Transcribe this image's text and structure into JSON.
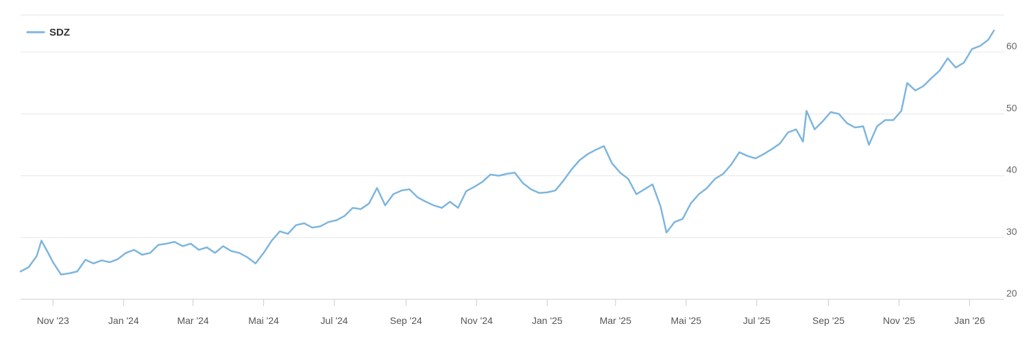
{
  "chart_data": {
    "type": "line",
    "title": "",
    "xlabel": "",
    "ylabel": "",
    "legend_position": "top-left",
    "grid": true,
    "ylim": [
      20,
      66
    ],
    "y_ticks": [
      20,
      30,
      40,
      50,
      60
    ],
    "x_tick_labels": [
      "Nov '23",
      "Jan '24",
      "Mar '24",
      "Mai '24",
      "Jul '24",
      "Sep '24",
      "Nov '24",
      "Jan '25",
      "Mar '25",
      "Mai '25",
      "Jul '25",
      "Sep '25",
      "Nov '25",
      "Jan '26"
    ],
    "x_tick_dates": [
      "2023-11-01",
      "2024-01-01",
      "2024-03-01",
      "2024-05-01",
      "2024-07-01",
      "2024-09-01",
      "2024-11-01",
      "2025-01-01",
      "2025-03-01",
      "2025-05-01",
      "2025-07-01",
      "2025-09-01",
      "2025-11-01",
      "2026-01-01"
    ],
    "x_range": [
      "2023-10-04",
      "2026-01-22"
    ],
    "series": [
      {
        "name": "SDZ",
        "color": "#7cb5de",
        "points": [
          [
            "2023-10-04",
            24.5
          ],
          [
            "2023-10-11",
            25.2
          ],
          [
            "2023-10-18",
            27.0
          ],
          [
            "2023-10-22",
            29.5
          ],
          [
            "2023-10-27",
            27.8
          ],
          [
            "2023-11-01",
            26.0
          ],
          [
            "2023-11-08",
            24.0
          ],
          [
            "2023-11-15",
            24.2
          ],
          [
            "2023-11-22",
            24.5
          ],
          [
            "2023-11-29",
            26.4
          ],
          [
            "2023-12-06",
            25.8
          ],
          [
            "2023-12-13",
            26.3
          ],
          [
            "2023-12-20",
            26.0
          ],
          [
            "2023-12-27",
            26.5
          ],
          [
            "2024-01-03",
            27.5
          ],
          [
            "2024-01-10",
            28.0
          ],
          [
            "2024-01-17",
            27.2
          ],
          [
            "2024-01-24",
            27.5
          ],
          [
            "2024-01-31",
            28.8
          ],
          [
            "2024-02-07",
            29.0
          ],
          [
            "2024-02-14",
            29.3
          ],
          [
            "2024-02-21",
            28.6
          ],
          [
            "2024-02-28",
            29.0
          ],
          [
            "2024-03-06",
            28.0
          ],
          [
            "2024-03-13",
            28.4
          ],
          [
            "2024-03-20",
            27.5
          ],
          [
            "2024-03-27",
            28.6
          ],
          [
            "2024-04-03",
            27.8
          ],
          [
            "2024-04-10",
            27.5
          ],
          [
            "2024-04-17",
            26.8
          ],
          [
            "2024-04-24",
            25.8
          ],
          [
            "2024-05-01",
            27.5
          ],
          [
            "2024-05-08",
            29.5
          ],
          [
            "2024-05-15",
            31.0
          ],
          [
            "2024-05-22",
            30.6
          ],
          [
            "2024-05-29",
            32.0
          ],
          [
            "2024-06-05",
            32.3
          ],
          [
            "2024-06-12",
            31.6
          ],
          [
            "2024-06-19",
            31.8
          ],
          [
            "2024-06-26",
            32.5
          ],
          [
            "2024-07-03",
            32.8
          ],
          [
            "2024-07-10",
            33.5
          ],
          [
            "2024-07-17",
            34.8
          ],
          [
            "2024-07-24",
            34.6
          ],
          [
            "2024-07-31",
            35.5
          ],
          [
            "2024-08-07",
            38.0
          ],
          [
            "2024-08-14",
            35.2
          ],
          [
            "2024-08-21",
            37.0
          ],
          [
            "2024-08-28",
            37.6
          ],
          [
            "2024-09-04",
            37.8
          ],
          [
            "2024-09-11",
            36.5
          ],
          [
            "2024-09-18",
            35.8
          ],
          [
            "2024-09-25",
            35.2
          ],
          [
            "2024-10-02",
            34.8
          ],
          [
            "2024-10-09",
            35.8
          ],
          [
            "2024-10-16",
            34.8
          ],
          [
            "2024-10-23",
            37.5
          ],
          [
            "2024-10-30",
            38.2
          ],
          [
            "2024-11-06",
            39.0
          ],
          [
            "2024-11-13",
            40.2
          ],
          [
            "2024-11-20",
            40.0
          ],
          [
            "2024-11-27",
            40.3
          ],
          [
            "2024-12-04",
            40.5
          ],
          [
            "2024-12-11",
            38.8
          ],
          [
            "2024-12-18",
            37.8
          ],
          [
            "2024-12-25",
            37.2
          ],
          [
            "2025-01-01",
            37.3
          ],
          [
            "2025-01-08",
            37.6
          ],
          [
            "2025-01-15",
            39.2
          ],
          [
            "2025-01-22",
            41.0
          ],
          [
            "2025-01-29",
            42.5
          ],
          [
            "2025-02-05",
            43.5
          ],
          [
            "2025-02-12",
            44.2
          ],
          [
            "2025-02-19",
            44.8
          ],
          [
            "2025-02-26",
            42.0
          ],
          [
            "2025-03-05",
            40.5
          ],
          [
            "2025-03-12",
            39.5
          ],
          [
            "2025-03-19",
            37.0
          ],
          [
            "2025-03-26",
            37.8
          ],
          [
            "2025-04-02",
            38.6
          ],
          [
            "2025-04-09",
            35.0
          ],
          [
            "2025-04-14",
            30.8
          ],
          [
            "2025-04-21",
            32.5
          ],
          [
            "2025-04-28",
            33.0
          ],
          [
            "2025-05-05",
            35.5
          ],
          [
            "2025-05-12",
            37.0
          ],
          [
            "2025-05-19",
            38.0
          ],
          [
            "2025-05-26",
            39.5
          ],
          [
            "2025-06-02",
            40.3
          ],
          [
            "2025-06-09",
            41.8
          ],
          [
            "2025-06-16",
            43.8
          ],
          [
            "2025-06-23",
            43.2
          ],
          [
            "2025-06-30",
            42.8
          ],
          [
            "2025-07-07",
            43.5
          ],
          [
            "2025-07-14",
            44.3
          ],
          [
            "2025-07-21",
            45.2
          ],
          [
            "2025-07-28",
            47.0
          ],
          [
            "2025-08-04",
            47.5
          ],
          [
            "2025-08-10",
            45.5
          ],
          [
            "2025-08-13",
            50.5
          ],
          [
            "2025-08-20",
            47.5
          ],
          [
            "2025-08-27",
            48.8
          ],
          [
            "2025-09-03",
            50.3
          ],
          [
            "2025-09-10",
            50.0
          ],
          [
            "2025-09-17",
            48.5
          ],
          [
            "2025-09-24",
            47.8
          ],
          [
            "2025-10-01",
            48.0
          ],
          [
            "2025-10-06",
            45.0
          ],
          [
            "2025-10-13",
            48.0
          ],
          [
            "2025-10-20",
            49.0
          ],
          [
            "2025-10-27",
            49.0
          ],
          [
            "2025-11-03",
            50.5
          ],
          [
            "2025-11-08",
            55.0
          ],
          [
            "2025-11-15",
            53.8
          ],
          [
            "2025-11-22",
            54.5
          ],
          [
            "2025-11-29",
            55.8
          ],
          [
            "2025-12-06",
            57.0
          ],
          [
            "2025-12-13",
            59.0
          ],
          [
            "2025-12-20",
            57.5
          ],
          [
            "2025-12-27",
            58.3
          ],
          [
            "2026-01-03",
            60.5
          ],
          [
            "2026-01-10",
            61.0
          ],
          [
            "2026-01-17",
            62.0
          ],
          [
            "2026-01-22",
            63.5
          ]
        ]
      }
    ]
  }
}
